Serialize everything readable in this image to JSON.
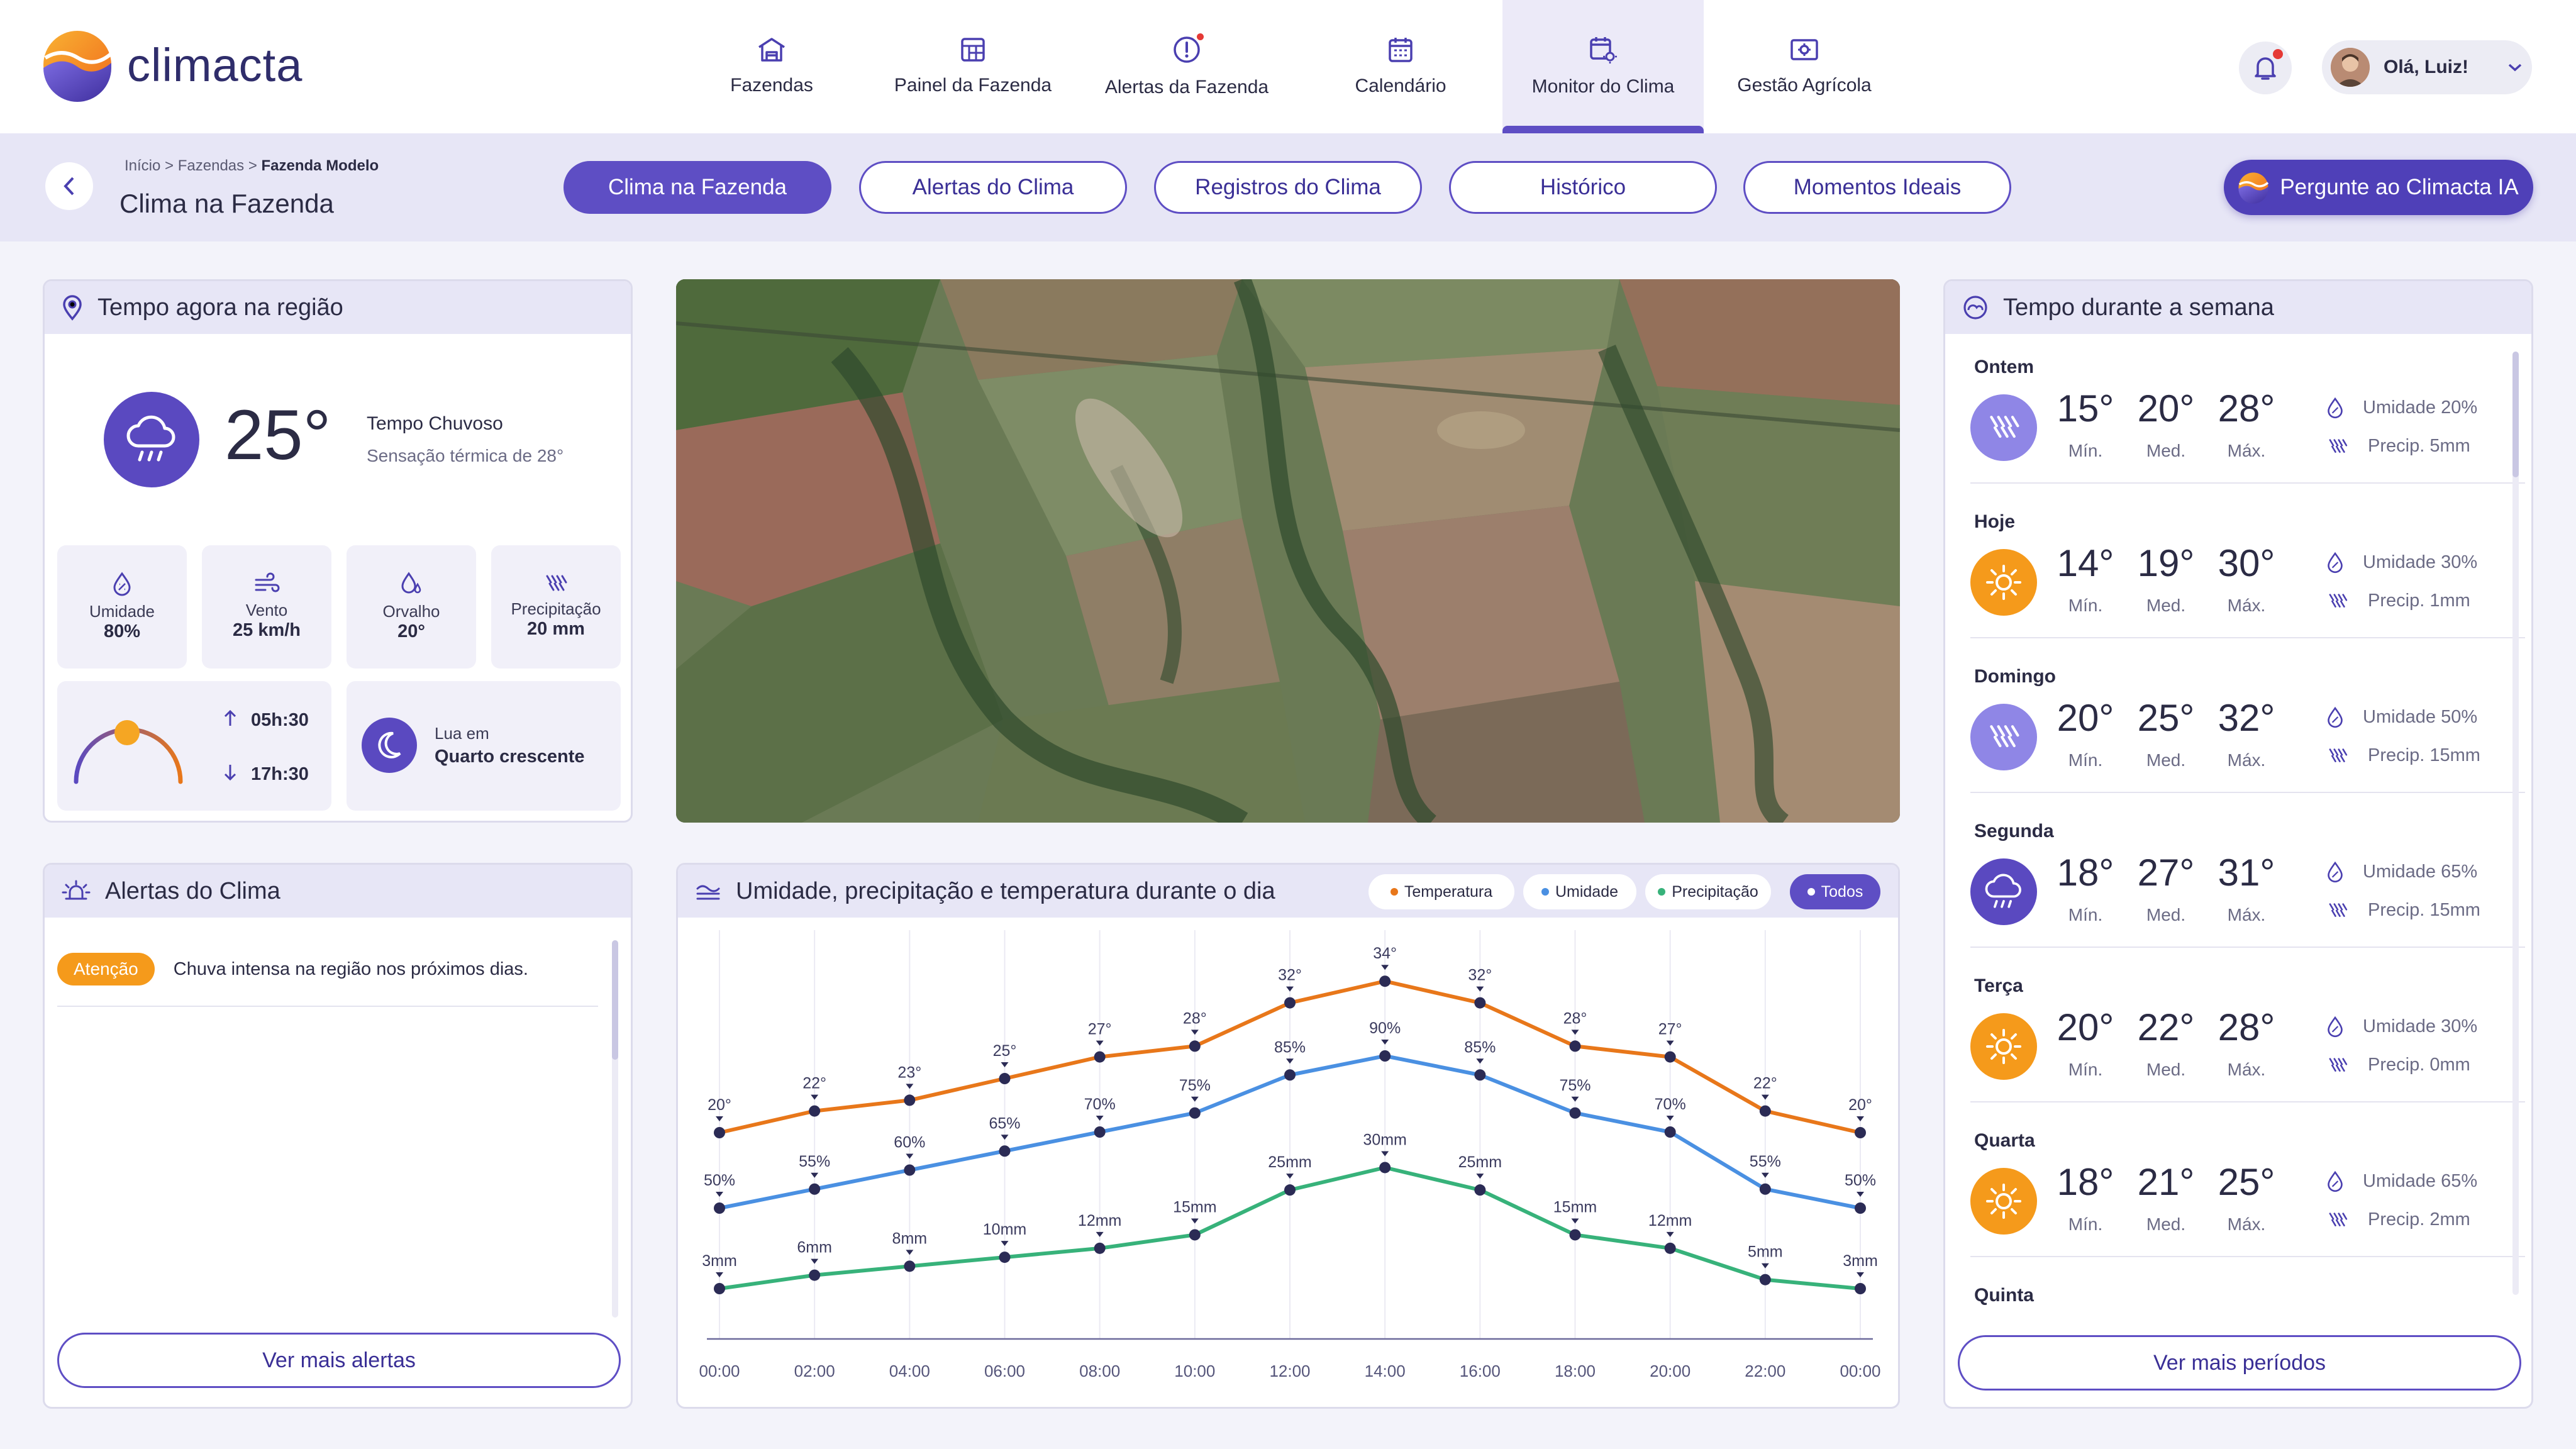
{
  "brand": {
    "name": "climacta"
  },
  "nav": [
    {
      "label": "Fazendas",
      "icon": "barn-icon"
    },
    {
      "label": "Painel da Fazenda",
      "icon": "dashboard-icon"
    },
    {
      "label": "Alertas da Fazenda",
      "icon": "alert-icon"
    },
    {
      "label": "Calendário",
      "icon": "calendar-icon"
    },
    {
      "label": "Monitor do Clima",
      "icon": "calendar-weather-icon",
      "active": true
    },
    {
      "label": "Gestão Agrícola",
      "icon": "management-icon"
    }
  ],
  "user": {
    "greeting": "Olá, Luiz!"
  },
  "subheader": {
    "breadcrumb": {
      "a": "Início",
      "b": "Fazendas",
      "c": "Fazenda Modelo",
      "sep": ">"
    },
    "title": "Clima na Fazenda",
    "tabs": [
      "Clima na Fazenda",
      "Alertas do Clima",
      "Registros do Clima",
      "Histórico",
      "Momentos Ideais"
    ],
    "ask": "Pergunte ao Climacta IA"
  },
  "now": {
    "title": "Tempo agora na região",
    "temp": "25°",
    "condition": "Tempo Chuvoso",
    "feels": "Sensação térmica de 28°",
    "stats": [
      {
        "label": "Umidade",
        "value": "80%",
        "icon": "humidity-icon"
      },
      {
        "label": "Vento",
        "value": "25 km/h",
        "icon": "wind-icon"
      },
      {
        "label": "Orvalho",
        "value": "20°",
        "icon": "dew-icon"
      },
      {
        "label": "Precipitação",
        "value": "20 mm",
        "icon": "rain-icon"
      }
    ],
    "sunrise": "05h:30",
    "sunset": "17h:30",
    "moon_prefix": "Lua em",
    "moon_phase": "Quarto crescente"
  },
  "alerts": {
    "title": "Alertas do Clima",
    "items": [
      {
        "badge": "Atenção",
        "text": "Chuva intensa na região nos próximos dias."
      }
    ],
    "more": "Ver mais alertas"
  },
  "chart_card": {
    "title": "Umidade, precipitação e temperatura durante o dia",
    "legend": [
      "Temperatura",
      "Umidade",
      "Precipitação",
      "Todos"
    ]
  },
  "chart_data": {
    "type": "line",
    "x": [
      "00:00",
      "02:00",
      "04:00",
      "06:00",
      "08:00",
      "10:00",
      "12:00",
      "14:00",
      "16:00",
      "18:00",
      "20:00",
      "22:00",
      "00:00"
    ],
    "series": [
      {
        "name": "Temperatura",
        "color": "#e8771a",
        "unit": "°",
        "values": [
          20,
          22,
          23,
          25,
          27,
          28,
          32,
          34,
          32,
          28,
          27,
          22,
          20
        ]
      },
      {
        "name": "Umidade",
        "color": "#4a90e2",
        "unit": "%",
        "values": [
          50,
          55,
          60,
          65,
          70,
          75,
          85,
          90,
          85,
          75,
          70,
          55,
          50
        ]
      },
      {
        "name": "Precipitação",
        "color": "#37b27a",
        "unit": "mm",
        "values": [
          3,
          6,
          8,
          10,
          12,
          15,
          25,
          30,
          25,
          15,
          12,
          5,
          3
        ]
      }
    ],
    "grid": "vertical"
  },
  "week": {
    "title": "Tempo durante a semana",
    "labels": {
      "min": "Mín.",
      "med": "Med.",
      "max": "Máx."
    },
    "days": [
      {
        "day": "Ontem",
        "icon": "rain-icon",
        "min": "15°",
        "med": "20°",
        "max": "28°",
        "humidity": "Umidade 20%",
        "precip": "Precip. 5mm"
      },
      {
        "day": "Hoje",
        "icon": "sun-icon",
        "min": "14°",
        "med": "19°",
        "max": "30°",
        "humidity": "Umidade 30%",
        "precip": "Precip. 1mm"
      },
      {
        "day": "Domingo",
        "icon": "rain-icon",
        "min": "20°",
        "med": "25°",
        "max": "32°",
        "humidity": "Umidade 50%",
        "precip": "Precip. 15mm"
      },
      {
        "day": "Segunda",
        "icon": "cloud-rain-icon",
        "min": "18°",
        "med": "27°",
        "max": "31°",
        "humidity": "Umidade 65%",
        "precip": "Precip. 15mm"
      },
      {
        "day": "Terça",
        "icon": "sun-icon",
        "min": "20°",
        "med": "22°",
        "max": "28°",
        "humidity": "Umidade 30%",
        "precip": "Precip. 0mm"
      },
      {
        "day": "Quarta",
        "icon": "sun-icon",
        "min": "18°",
        "med": "21°",
        "max": "25°",
        "humidity": "Umidade 65%",
        "precip": "Precip. 2mm"
      },
      {
        "day": "Quinta"
      }
    ],
    "more": "Ver mais períodos"
  },
  "colors": {
    "primary": "#5e4ec4",
    "accent": "#f59a1b",
    "orange": "#e8771a",
    "blue": "#4a90e2",
    "green": "#37b27a"
  }
}
